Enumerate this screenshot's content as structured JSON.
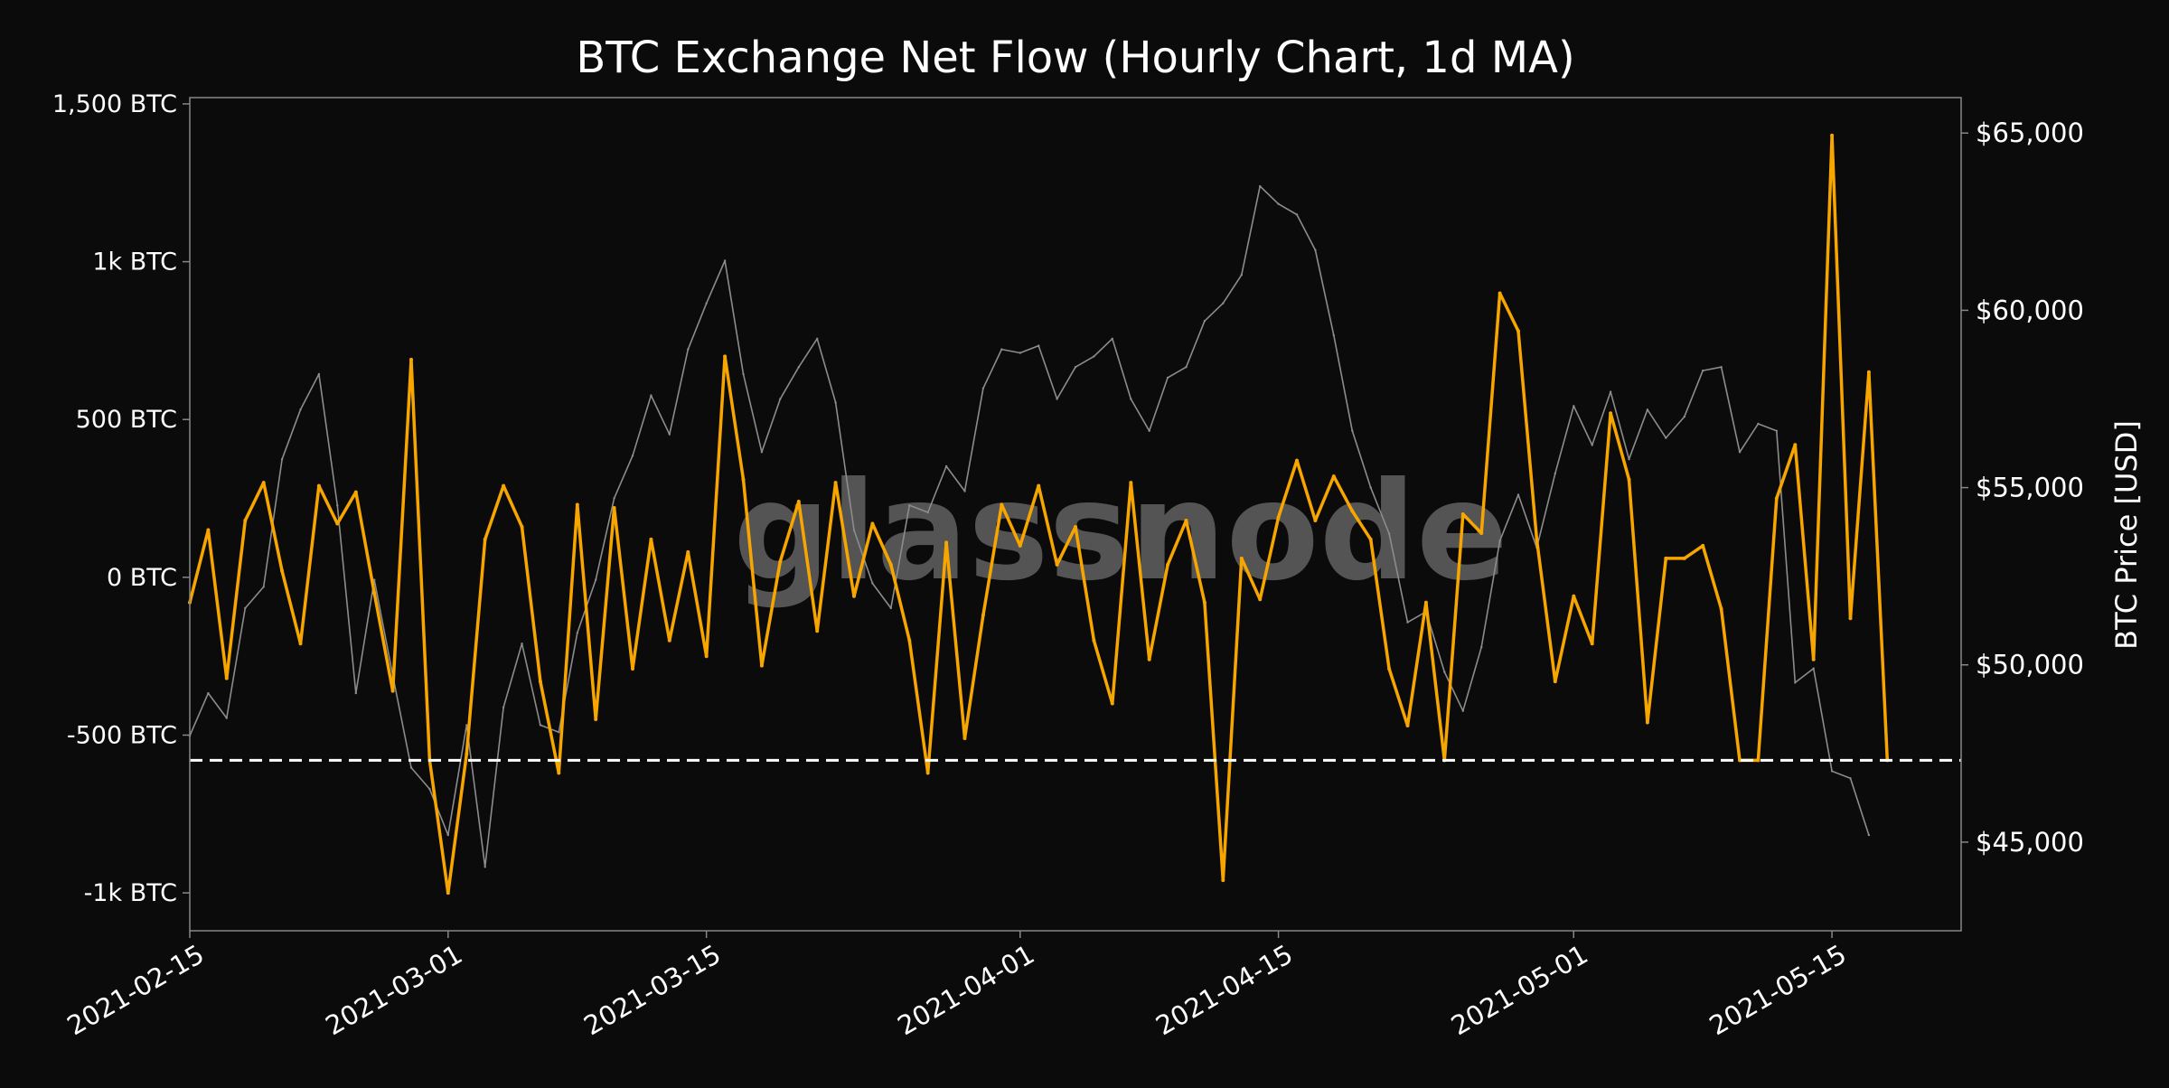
{
  "chart_data": {
    "type": "line",
    "title": "BTC Exchange Net Flow (Hourly Chart, 1d MA)",
    "watermark": "glassnode",
    "xlabel": "",
    "ylabel_left": "",
    "ylabel_right": "BTC Price [USD]",
    "x_range": [
      "2021-02-15",
      "2021-05-22"
    ],
    "x_ticks": [
      "2021-02-15",
      "2021-03-01",
      "2021-03-15",
      "2021-04-01",
      "2021-04-15",
      "2021-05-01",
      "2021-05-15"
    ],
    "y_left_range": [
      -1120,
      1520
    ],
    "y_left_ticks": [
      {
        "value": 1500,
        "label": "1,500 BTC"
      },
      {
        "value": 1000,
        "label": "1k BTC"
      },
      {
        "value": 500,
        "label": "500 BTC"
      },
      {
        "value": 0,
        "label": "0 BTC"
      },
      {
        "value": -500,
        "label": "-500 BTC"
      },
      {
        "value": -1000,
        "label": "-1k BTC"
      }
    ],
    "y_right_range": [
      42500,
      66000
    ],
    "y_right_ticks": [
      {
        "value": 65000,
        "label": "$65,000"
      },
      {
        "value": 60000,
        "label": "$60,000"
      },
      {
        "value": 55000,
        "label": "$55,000"
      },
      {
        "value": 50000,
        "label": "$50,000"
      },
      {
        "value": 45000,
        "label": "$45,000"
      }
    ],
    "reference_line": {
      "axis": "left",
      "value": -580,
      "style": "dashed"
    },
    "grid": false,
    "colors": {
      "background": "#0b0b0b",
      "net_flow": "#f7a600",
      "price": "#8c8c8c",
      "reference": "#ffffff",
      "frame": "#888888"
    },
    "series": [
      {
        "axis": "left",
        "color": "#f7a600",
        "points": [
          [
            "2021-02-15",
            -80
          ],
          [
            "2021-02-16",
            150
          ],
          [
            "2021-02-17",
            -320
          ],
          [
            "2021-02-18",
            180
          ],
          [
            "2021-02-19",
            300
          ],
          [
            "2021-02-20",
            20
          ],
          [
            "2021-02-21",
            -210
          ],
          [
            "2021-02-22",
            290
          ],
          [
            "2021-02-23",
            170
          ],
          [
            "2021-02-24",
            270
          ],
          [
            "2021-02-25",
            -50
          ],
          [
            "2021-02-26",
            -360
          ],
          [
            "2021-02-27",
            690
          ],
          [
            "2021-02-28",
            -580
          ],
          [
            "2021-03-01",
            -1000
          ],
          [
            "2021-03-02",
            -560
          ],
          [
            "2021-03-03",
            120
          ],
          [
            "2021-03-04",
            290
          ],
          [
            "2021-03-05",
            160
          ],
          [
            "2021-03-06",
            -330
          ],
          [
            "2021-03-07",
            -620
          ],
          [
            "2021-03-08",
            230
          ],
          [
            "2021-03-09",
            -450
          ],
          [
            "2021-03-10",
            220
          ],
          [
            "2021-03-11",
            -290
          ],
          [
            "2021-03-12",
            120
          ],
          [
            "2021-03-13",
            -200
          ],
          [
            "2021-03-14",
            80
          ],
          [
            "2021-03-15",
            -250
          ],
          [
            "2021-03-16",
            700
          ],
          [
            "2021-03-17",
            310
          ],
          [
            "2021-03-18",
            -280
          ],
          [
            "2021-03-19",
            50
          ],
          [
            "2021-03-20",
            240
          ],
          [
            "2021-03-21",
            -170
          ],
          [
            "2021-03-22",
            300
          ],
          [
            "2021-03-23",
            -60
          ],
          [
            "2021-03-24",
            170
          ],
          [
            "2021-03-25",
            40
          ],
          [
            "2021-03-26",
            -200
          ],
          [
            "2021-03-27",
            -620
          ],
          [
            "2021-03-28",
            110
          ],
          [
            "2021-03-29",
            -510
          ],
          [
            "2021-03-30",
            -120
          ],
          [
            "2021-03-31",
            230
          ],
          [
            "2021-04-01",
            100
          ],
          [
            "2021-04-02",
            290
          ],
          [
            "2021-04-03",
            40
          ],
          [
            "2021-04-04",
            160
          ],
          [
            "2021-04-05",
            -200
          ],
          [
            "2021-04-06",
            -400
          ],
          [
            "2021-04-07",
            300
          ],
          [
            "2021-04-08",
            -260
          ],
          [
            "2021-04-09",
            40
          ],
          [
            "2021-04-10",
            180
          ],
          [
            "2021-04-11",
            -80
          ],
          [
            "2021-04-12",
            -960
          ],
          [
            "2021-04-13",
            60
          ],
          [
            "2021-04-14",
            -70
          ],
          [
            "2021-04-15",
            190
          ],
          [
            "2021-04-16",
            370
          ],
          [
            "2021-04-17",
            180
          ],
          [
            "2021-04-18",
            320
          ],
          [
            "2021-04-19",
            210
          ],
          [
            "2021-04-20",
            120
          ],
          [
            "2021-04-21",
            -290
          ],
          [
            "2021-04-22",
            -470
          ],
          [
            "2021-04-23",
            -80
          ],
          [
            "2021-04-24",
            -580
          ],
          [
            "2021-04-25",
            200
          ],
          [
            "2021-04-26",
            140
          ],
          [
            "2021-04-27",
            900
          ],
          [
            "2021-04-28",
            780
          ],
          [
            "2021-04-29",
            120
          ],
          [
            "2021-04-30",
            -330
          ],
          [
            "2021-05-01",
            -60
          ],
          [
            "2021-05-02",
            -210
          ],
          [
            "2021-05-03",
            520
          ],
          [
            "2021-05-04",
            310
          ],
          [
            "2021-05-05",
            -460
          ],
          [
            "2021-05-06",
            60
          ],
          [
            "2021-05-07",
            60
          ],
          [
            "2021-05-08",
            100
          ],
          [
            "2021-05-09",
            -100
          ],
          [
            "2021-05-10",
            -580
          ],
          [
            "2021-05-11",
            -580
          ],
          [
            "2021-05-12",
            250
          ],
          [
            "2021-05-13",
            420
          ],
          [
            "2021-05-14",
            -260
          ],
          [
            "2021-05-15",
            1400
          ],
          [
            "2021-05-16",
            -130
          ],
          [
            "2021-05-17",
            650
          ],
          [
            "2021-05-18",
            -580
          ]
        ]
      },
      {
        "axis": "right",
        "color": "#8c8c8c",
        "points": [
          [
            "2021-02-15",
            48000
          ],
          [
            "2021-02-16",
            49200
          ],
          [
            "2021-02-17",
            48500
          ],
          [
            "2021-02-18",
            51600
          ],
          [
            "2021-02-19",
            52200
          ],
          [
            "2021-02-20",
            55800
          ],
          [
            "2021-02-21",
            57200
          ],
          [
            "2021-02-22",
            58200
          ],
          [
            "2021-02-23",
            54500
          ],
          [
            "2021-02-24",
            49200
          ],
          [
            "2021-02-25",
            52400
          ],
          [
            "2021-02-26",
            49700
          ],
          [
            "2021-02-27",
            47100
          ],
          [
            "2021-02-28",
            46500
          ],
          [
            "2021-03-01",
            45200
          ],
          [
            "2021-03-02",
            48300
          ],
          [
            "2021-03-03",
            44300
          ],
          [
            "2021-03-04",
            48800
          ],
          [
            "2021-03-05",
            50600
          ],
          [
            "2021-03-06",
            48300
          ],
          [
            "2021-03-07",
            48100
          ],
          [
            "2021-03-08",
            50900
          ],
          [
            "2021-03-09",
            52400
          ],
          [
            "2021-03-10",
            54700
          ],
          [
            "2021-03-11",
            55900
          ],
          [
            "2021-03-12",
            57600
          ],
          [
            "2021-03-13",
            56500
          ],
          [
            "2021-03-14",
            58900
          ],
          [
            "2021-03-15",
            60200
          ],
          [
            "2021-03-16",
            61400
          ],
          [
            "2021-03-17",
            58200
          ],
          [
            "2021-03-18",
            56000
          ],
          [
            "2021-03-19",
            57500
          ],
          [
            "2021-03-20",
            58400
          ],
          [
            "2021-03-21",
            59200
          ],
          [
            "2021-03-22",
            57400
          ],
          [
            "2021-03-23",
            53800
          ],
          [
            "2021-03-24",
            52300
          ],
          [
            "2021-03-25",
            51600
          ],
          [
            "2021-03-26",
            54500
          ],
          [
            "2021-03-27",
            54300
          ],
          [
            "2021-03-28",
            55600
          ],
          [
            "2021-03-29",
            54900
          ],
          [
            "2021-03-30",
            57800
          ],
          [
            "2021-03-31",
            58900
          ],
          [
            "2021-04-01",
            58800
          ],
          [
            "2021-04-02",
            59000
          ],
          [
            "2021-04-03",
            57500
          ],
          [
            "2021-04-04",
            58400
          ],
          [
            "2021-04-05",
            58700
          ],
          [
            "2021-04-06",
            59200
          ],
          [
            "2021-04-07",
            57500
          ],
          [
            "2021-04-08",
            56600
          ],
          [
            "2021-04-09",
            58100
          ],
          [
            "2021-04-10",
            58400
          ],
          [
            "2021-04-11",
            59700
          ],
          [
            "2021-04-12",
            60200
          ],
          [
            "2021-04-13",
            61000
          ],
          [
            "2021-04-14",
            63500
          ],
          [
            "2021-04-15",
            63000
          ],
          [
            "2021-04-16",
            62700
          ],
          [
            "2021-04-17",
            61700
          ],
          [
            "2021-04-18",
            59300
          ],
          [
            "2021-04-19",
            56600
          ],
          [
            "2021-04-20",
            55000
          ],
          [
            "2021-04-21",
            53700
          ],
          [
            "2021-04-22",
            51200
          ],
          [
            "2021-04-23",
            51500
          ],
          [
            "2021-04-24",
            49800
          ],
          [
            "2021-04-25",
            48700
          ],
          [
            "2021-04-26",
            50500
          ],
          [
            "2021-04-27",
            53500
          ],
          [
            "2021-04-28",
            54800
          ],
          [
            "2021-04-29",
            53300
          ],
          [
            "2021-04-30",
            55400
          ],
          [
            "2021-05-01",
            57300
          ],
          [
            "2021-05-02",
            56200
          ],
          [
            "2021-05-03",
            57700
          ],
          [
            "2021-05-04",
            55800
          ],
          [
            "2021-05-05",
            57200
          ],
          [
            "2021-05-06",
            56400
          ],
          [
            "2021-05-07",
            57000
          ],
          [
            "2021-05-08",
            58300
          ],
          [
            "2021-05-09",
            58400
          ],
          [
            "2021-05-10",
            56000
          ],
          [
            "2021-05-11",
            56800
          ],
          [
            "2021-05-12",
            56600
          ],
          [
            "2021-05-13",
            49500
          ],
          [
            "2021-05-14",
            49900
          ],
          [
            "2021-05-15",
            47000
          ],
          [
            "2021-05-16",
            46800
          ],
          [
            "2021-05-17",
            45200
          ]
        ]
      }
    ]
  }
}
